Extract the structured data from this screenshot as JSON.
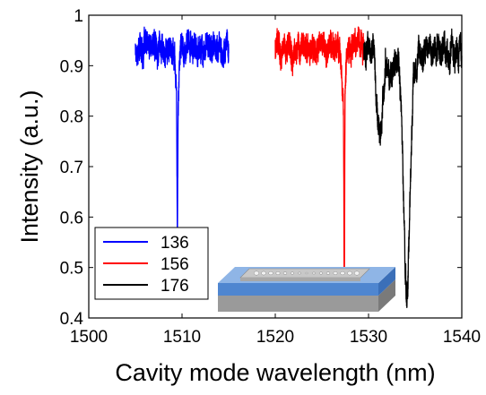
{
  "chart_data": {
    "type": "line",
    "title": "",
    "xlabel": "Cavity mode wavelength (nm)",
    "ylabel": "Intensity (a.u.)",
    "xlim": [
      1500,
      1540
    ],
    "ylim": [
      0.4,
      1.0
    ],
    "xticks": [
      1500,
      1510,
      1520,
      1530,
      1540
    ],
    "yticks": [
      0.4,
      0.5,
      0.6,
      0.7,
      0.8,
      0.9,
      1.0
    ],
    "xtick_labels": [
      "1500",
      "1510",
      "1520",
      "1530",
      "1540"
    ],
    "ytick_labels": [
      "0.4",
      "0.5",
      "0.6",
      "0.7",
      "0.8",
      "0.9",
      "1"
    ],
    "grid": false,
    "legend_position": "bottom-left",
    "series": [
      {
        "name": "136",
        "color": "#0000ff",
        "x_range": [
          1505,
          1515
        ],
        "baseline": 0.935,
        "noise": 0.03,
        "dips": [
          {
            "center": 1509.5,
            "min": 0.67,
            "width": 0.04
          },
          {
            "center": 1509.5,
            "min": 0.82,
            "width": 0.15
          }
        ]
      },
      {
        "name": "156",
        "color": "#ff0000",
        "x_range": [
          1520,
          1529.5
        ],
        "baseline": 0.935,
        "noise": 0.03,
        "dips": [
          {
            "center": 1527.4,
            "min": 0.53,
            "width": 0.04
          },
          {
            "center": 1527.3,
            "min": 0.84,
            "width": 0.2
          }
        ]
      },
      {
        "name": "176",
        "color": "#000000",
        "x_range": [
          1529.5,
          1540
        ],
        "baseline": 0.93,
        "noise": 0.03,
        "dips": [
          {
            "center": 1534.1,
            "min": 0.45,
            "width": 0.35
          },
          {
            "center": 1531.2,
            "min": 0.76,
            "width": 0.3
          },
          {
            "center": 1532.5,
            "min": 0.88,
            "width": 0.4
          }
        ]
      }
    ]
  },
  "inset": {
    "description": "waveguide-cavity-schematic",
    "colors": {
      "substrate": "#9a9a9a",
      "layer": "#4f86d0",
      "layer_top": "#8fb5e6",
      "ridge": "#c8c8c8"
    }
  }
}
